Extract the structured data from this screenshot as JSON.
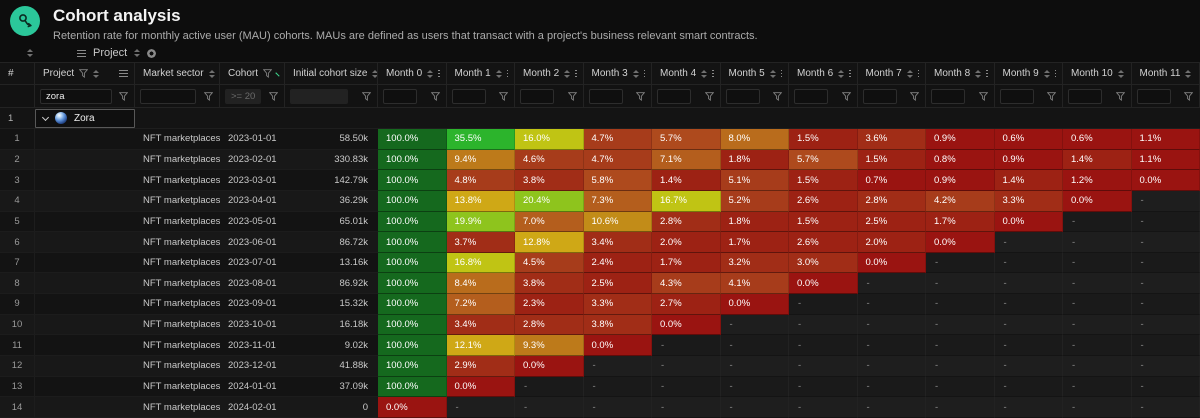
{
  "header": {
    "title": "Cohort analysis",
    "subtitle": "Retention rate for monthly active user (MAU) cohorts. MAUs are defined as users that transact with a project's business relevant smart contracts.",
    "icon_color": "#2bc79a"
  },
  "toolbar": {
    "group_chip": {
      "label": "Project"
    }
  },
  "table": {
    "columns": {
      "row_number": "#",
      "project": "Project",
      "market_sector": "Market sector",
      "cohort": "Cohort",
      "initial_cohort_size": "Initial cohort size",
      "months": [
        "Month 0",
        "Month 1",
        "Month 2",
        "Month 3",
        "Month 4",
        "Month 5",
        "Month 6",
        "Month 7",
        "Month 8",
        "Month 9",
        "Month 10",
        "Month 11"
      ]
    },
    "filters": {
      "project": "zora",
      "market_sector": "",
      "cohort": ">= 2023-",
      "initial_cohort_size": "",
      "months": [
        "",
        "",
        "",
        "",
        "",
        "",
        "",
        "",
        "",
        "",
        "",
        ""
      ]
    },
    "sort": {
      "column": "cohort",
      "direction": "asc",
      "indicator_color": "#3dd68c"
    },
    "group_row": {
      "number": "1",
      "label": "Zora"
    },
    "empty_cell_text": "-",
    "heat_scale": [
      {
        "min": 100,
        "color": "#15691e"
      },
      {
        "min": 30,
        "color": "#2cb42c"
      },
      {
        "min": 18,
        "color": "#8ec41d"
      },
      {
        "min": 15,
        "color": "#c0c414"
      },
      {
        "min": 11.5,
        "color": "#cfa816"
      },
      {
        "min": 10,
        "color": "#c28c18"
      },
      {
        "min": 8.8,
        "color": "#bd7a1a"
      },
      {
        "min": 7.8,
        "color": "#b96c1c"
      },
      {
        "min": 6.5,
        "color": "#b45e1d"
      },
      {
        "min": 5.4,
        "color": "#ae4a1d"
      },
      {
        "min": 4.0,
        "color": "#a73c1b"
      },
      {
        "min": 2.8,
        "color": "#a12d17"
      },
      {
        "min": 1.3,
        "color": "#9d2214"
      },
      {
        "min": 0,
        "color": "#9a1411"
      }
    ],
    "rows": [
      {
        "number": "1",
        "market_sector": "NFT marketplaces",
        "cohort": "2023-01-01",
        "initial_cohort_size": "58.50k",
        "months": [
          100.0,
          35.5,
          16.0,
          4.7,
          5.7,
          8.0,
          1.5,
          3.6,
          0.9,
          0.6,
          0.6,
          1.1
        ]
      },
      {
        "number": "2",
        "market_sector": "NFT marketplaces",
        "cohort": "2023-02-01",
        "initial_cohort_size": "330.83k",
        "months": [
          100.0,
          9.4,
          4.6,
          4.7,
          7.1,
          1.8,
          5.7,
          1.5,
          0.8,
          0.9,
          1.4,
          1.1
        ]
      },
      {
        "number": "3",
        "market_sector": "NFT marketplaces",
        "cohort": "2023-03-01",
        "initial_cohort_size": "142.79k",
        "months": [
          100.0,
          4.8,
          3.8,
          5.8,
          1.4,
          5.1,
          1.5,
          0.7,
          0.9,
          1.4,
          1.2,
          0.0
        ]
      },
      {
        "number": "4",
        "market_sector": "NFT marketplaces",
        "cohort": "2023-04-01",
        "initial_cohort_size": "36.29k",
        "months": [
          100.0,
          13.8,
          20.4,
          7.3,
          16.7,
          5.2,
          2.6,
          2.8,
          4.2,
          3.3,
          0.0,
          null
        ]
      },
      {
        "number": "5",
        "market_sector": "NFT marketplaces",
        "cohort": "2023-05-01",
        "initial_cohort_size": "65.01k",
        "months": [
          100.0,
          19.9,
          7.0,
          10.6,
          2.8,
          1.8,
          1.5,
          2.5,
          1.7,
          0.0,
          null,
          null
        ]
      },
      {
        "number": "6",
        "market_sector": "NFT marketplaces",
        "cohort": "2023-06-01",
        "initial_cohort_size": "86.72k",
        "months": [
          100.0,
          3.7,
          12.8,
          3.4,
          2.0,
          1.7,
          2.6,
          2.0,
          0.0,
          null,
          null,
          null
        ]
      },
      {
        "number": "7",
        "market_sector": "NFT marketplaces",
        "cohort": "2023-07-01",
        "initial_cohort_size": "13.16k",
        "months": [
          100.0,
          16.8,
          4.5,
          2.4,
          1.7,
          3.2,
          3.0,
          0.0,
          null,
          null,
          null,
          null
        ]
      },
      {
        "number": "8",
        "market_sector": "NFT marketplaces",
        "cohort": "2023-08-01",
        "initial_cohort_size": "86.92k",
        "months": [
          100.0,
          8.4,
          3.8,
          2.5,
          4.3,
          4.1,
          0.0,
          null,
          null,
          null,
          null,
          null
        ]
      },
      {
        "number": "9",
        "market_sector": "NFT marketplaces",
        "cohort": "2023-09-01",
        "initial_cohort_size": "15.32k",
        "months": [
          100.0,
          7.2,
          2.3,
          3.3,
          2.7,
          0.0,
          null,
          null,
          null,
          null,
          null,
          null
        ]
      },
      {
        "number": "10",
        "market_sector": "NFT marketplaces",
        "cohort": "2023-10-01",
        "initial_cohort_size": "16.18k",
        "months": [
          100.0,
          3.4,
          2.8,
          3.8,
          0.0,
          null,
          null,
          null,
          null,
          null,
          null,
          null
        ]
      },
      {
        "number": "11",
        "market_sector": "NFT marketplaces",
        "cohort": "2023-11-01",
        "initial_cohort_size": "9.02k",
        "months": [
          100.0,
          12.1,
          9.3,
          0.0,
          null,
          null,
          null,
          null,
          null,
          null,
          null,
          null
        ]
      },
      {
        "number": "12",
        "market_sector": "NFT marketplaces",
        "cohort": "2023-12-01",
        "initial_cohort_size": "41.88k",
        "months": [
          100.0,
          2.9,
          0.0,
          null,
          null,
          null,
          null,
          null,
          null,
          null,
          null,
          null
        ]
      },
      {
        "number": "13",
        "market_sector": "NFT marketplaces",
        "cohort": "2024-01-01",
        "initial_cohort_size": "37.09k",
        "months": [
          100.0,
          0.0,
          null,
          null,
          null,
          null,
          null,
          null,
          null,
          null,
          null,
          null
        ]
      },
      {
        "number": "14",
        "market_sector": "NFT marketplaces",
        "cohort": "2024-02-01",
        "initial_cohort_size": "0",
        "months": [
          0.0,
          null,
          null,
          null,
          null,
          null,
          null,
          null,
          null,
          null,
          null,
          null
        ]
      }
    ]
  }
}
